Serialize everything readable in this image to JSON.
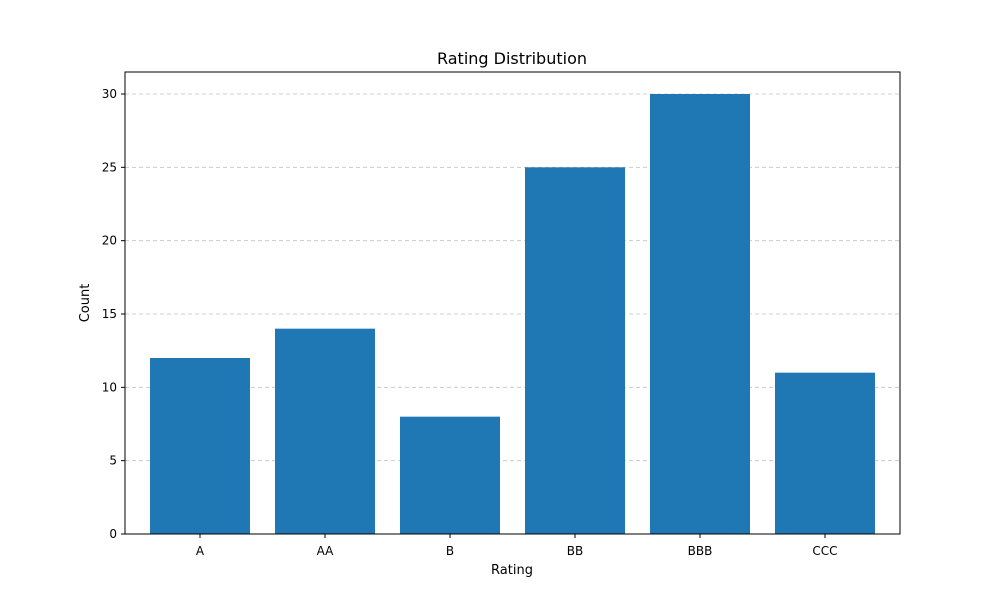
{
  "chart_data": {
    "type": "bar",
    "title": "Rating Distribution",
    "xlabel": "Rating",
    "ylabel": "Count",
    "categories": [
      "A",
      "AA",
      "B",
      "BB",
      "BBB",
      "CCC"
    ],
    "values": [
      12,
      14,
      8,
      25,
      30,
      11
    ],
    "ylim": [
      0,
      31.5
    ],
    "yticks": [
      0,
      5,
      10,
      15,
      20,
      25,
      30
    ],
    "grid": "y-dashed",
    "bar_color": "#1f77b4",
    "grid_color": "#c4c4c4"
  }
}
